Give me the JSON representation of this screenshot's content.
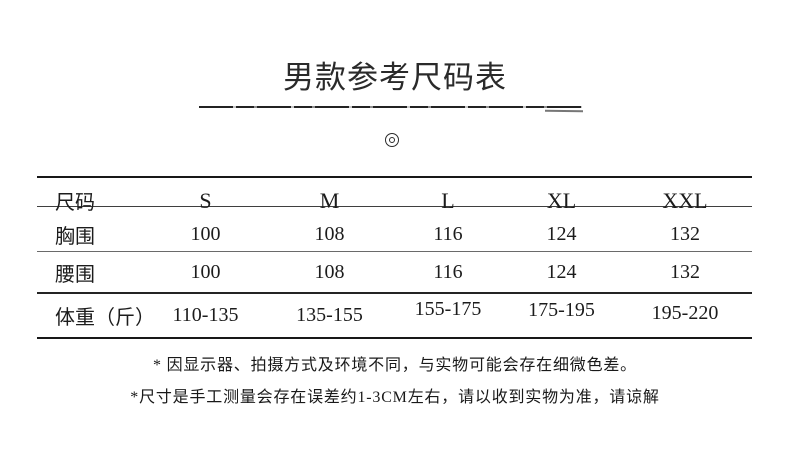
{
  "page": {
    "title": "男款参考尺码表",
    "ornament_symbol": "◎"
  },
  "size_table": {
    "columns": [
      "尺码",
      "S",
      "M",
      "L",
      "XL",
      "XXL"
    ],
    "rows": [
      {
        "key": "chest",
        "label": "胸围",
        "values": [
          "100",
          "108",
          "116",
          "124",
          "132"
        ]
      },
      {
        "key": "waist",
        "label": "腰围",
        "values": [
          "100",
          "108",
          "116",
          "124",
          "132"
        ]
      },
      {
        "key": "weight",
        "label": "体重（斤）",
        "values": [
          "110-135",
          "135-155",
          "155-175",
          "175-195",
          "195-220"
        ]
      }
    ]
  },
  "notes": {
    "color_difference": "* 因显示器、拍摄方式及环境不同，与实物可能会存在细微色差。",
    "measurement_tolerance": "*尺寸是手工测量会存在误差约1-3CM左右，请以收到实物为准，请谅解"
  },
  "colors": {
    "background": "#ffffff",
    "text": "#1c1c1c",
    "rule_heavy": "#181818",
    "rule_light": "#6a6a6a"
  }
}
